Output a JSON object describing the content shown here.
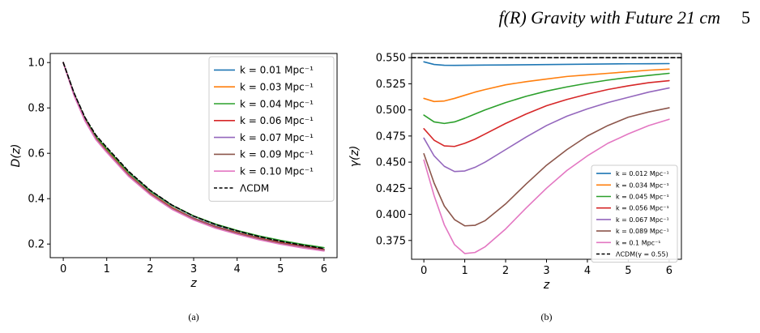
{
  "header": {
    "title": "f(R) Gravity with Future 21 cm",
    "page_number": "5"
  },
  "chart_data": [
    {
      "type": "line",
      "caption": "(a)",
      "xlabel": "z",
      "ylabel": "D(z)",
      "xlim": [
        -0.3,
        6.3
      ],
      "ylim": [
        0.14,
        1.04
      ],
      "xticks": [
        "0",
        "1",
        "2",
        "3",
        "4",
        "5",
        "6"
      ],
      "yticks": [
        "0.2",
        "0.4",
        "0.6",
        "0.8",
        "1.0"
      ],
      "legend_position": "top-right",
      "x": [
        0,
        0.25,
        0.5,
        0.75,
        1,
        1.5,
        2,
        2.5,
        3,
        3.5,
        4,
        4.5,
        5,
        5.5,
        6
      ],
      "series": [
        {
          "name": "k = 0.01 Mpc⁻¹",
          "color": "#1f77b4",
          "dash": "solid",
          "values": [
            1.0,
            0.86,
            0.75,
            0.67,
            0.615,
            0.51,
            0.428,
            0.363,
            0.315,
            0.279,
            0.252,
            0.228,
            0.208,
            0.192,
            0.177
          ]
        },
        {
          "name": "k = 0.03 Mpc⁻¹",
          "color": "#ff7f0e",
          "dash": "solid",
          "values": [
            1.0,
            0.858,
            0.748,
            0.668,
            0.612,
            0.507,
            0.425,
            0.361,
            0.313,
            0.277,
            0.25,
            0.226,
            0.206,
            0.19,
            0.175
          ]
        },
        {
          "name": "k = 0.04 Mpc⁻¹",
          "color": "#2ca02c",
          "dash": "solid",
          "values": [
            1.0,
            0.862,
            0.754,
            0.674,
            0.62,
            0.517,
            0.435,
            0.371,
            0.324,
            0.288,
            0.26,
            0.236,
            0.216,
            0.199,
            0.184
          ]
        },
        {
          "name": "k = 0.06 Mpc⁻¹",
          "color": "#d62728",
          "dash": "solid",
          "values": [
            1.0,
            0.857,
            0.747,
            0.666,
            0.61,
            0.505,
            0.423,
            0.359,
            0.312,
            0.276,
            0.249,
            0.225,
            0.205,
            0.189,
            0.175
          ]
        },
        {
          "name": "k = 0.07 Mpc⁻¹",
          "color": "#9467bd",
          "dash": "solid",
          "values": [
            1.0,
            0.856,
            0.745,
            0.664,
            0.608,
            0.503,
            0.421,
            0.357,
            0.31,
            0.274,
            0.247,
            0.223,
            0.203,
            0.187,
            0.173
          ]
        },
        {
          "name": "k = 0.09 Mpc⁻¹",
          "color": "#8c564b",
          "dash": "solid",
          "values": [
            1.0,
            0.855,
            0.744,
            0.663,
            0.607,
            0.502,
            0.42,
            0.356,
            0.309,
            0.273,
            0.246,
            0.222,
            0.202,
            0.186,
            0.172
          ]
        },
        {
          "name": "k = 0.10 Mpc⁻¹",
          "color": "#e377c2",
          "dash": "solid",
          "values": [
            1.0,
            0.853,
            0.742,
            0.66,
            0.604,
            0.499,
            0.417,
            0.353,
            0.306,
            0.27,
            0.243,
            0.219,
            0.199,
            0.183,
            0.169
          ]
        },
        {
          "name": "ΛCDM",
          "color": "#000000",
          "dash": "dashed",
          "values": [
            1.0,
            0.865,
            0.758,
            0.68,
            0.626,
            0.521,
            0.437,
            0.372,
            0.323,
            0.286,
            0.258,
            0.233,
            0.212,
            0.195,
            0.18
          ]
        }
      ]
    },
    {
      "type": "line",
      "caption": "(b)",
      "xlabel": "z",
      "ylabel": "γ(z)",
      "xlim": [
        -0.3,
        6.3
      ],
      "ylim": [
        0.357,
        0.554
      ],
      "xticks": [
        "0",
        "1",
        "2",
        "3",
        "4",
        "5",
        "6"
      ],
      "yticks": [
        "0.375",
        "0.400",
        "0.425",
        "0.450",
        "0.475",
        "0.500",
        "0.525",
        "0.550"
      ],
      "legend_position": "bottom-right",
      "x": [
        0,
        0.25,
        0.5,
        0.75,
        1,
        1.25,
        1.5,
        2,
        2.5,
        3,
        3.5,
        4,
        4.5,
        5,
        5.5,
        6
      ],
      "series": [
        {
          "name": "k = 0.012 Mpc⁻¹",
          "color": "#1f77b4",
          "dash": "solid",
          "values": [
            0.546,
            0.5435,
            0.5427,
            0.5426,
            0.5427,
            0.5428,
            0.5429,
            0.543,
            0.5432,
            0.5434,
            0.5436,
            0.5438,
            0.544,
            0.5441,
            0.5442,
            0.5443
          ]
        },
        {
          "name": "k = 0.034 Mpc⁻¹",
          "color": "#ff7f0e",
          "dash": "solid",
          "values": [
            0.511,
            0.508,
            0.5085,
            0.511,
            0.514,
            0.517,
            0.5195,
            0.524,
            0.527,
            0.5295,
            0.532,
            0.5335,
            0.535,
            0.5365,
            0.538,
            0.539
          ]
        },
        {
          "name": "k = 0.045 Mpc⁻¹",
          "color": "#2ca02c",
          "dash": "solid",
          "values": [
            0.495,
            0.4885,
            0.487,
            0.4885,
            0.492,
            0.496,
            0.5,
            0.507,
            0.513,
            0.518,
            0.522,
            0.5255,
            0.5285,
            0.531,
            0.533,
            0.535
          ]
        },
        {
          "name": "k = 0.056 Mpc⁻¹",
          "color": "#d62728",
          "dash": "solid",
          "values": [
            0.482,
            0.471,
            0.4655,
            0.465,
            0.468,
            0.472,
            0.477,
            0.487,
            0.496,
            0.504,
            0.51,
            0.515,
            0.5195,
            0.523,
            0.526,
            0.528
          ]
        },
        {
          "name": "k = 0.067 Mpc⁻¹",
          "color": "#9467bd",
          "dash": "solid",
          "values": [
            0.473,
            0.456,
            0.446,
            0.441,
            0.4415,
            0.445,
            0.45,
            0.462,
            0.474,
            0.485,
            0.494,
            0.501,
            0.507,
            0.512,
            0.517,
            0.521
          ]
        },
        {
          "name": "k = 0.089 Mpc⁻¹",
          "color": "#8c564b",
          "dash": "solid",
          "values": [
            0.458,
            0.43,
            0.408,
            0.395,
            0.389,
            0.3895,
            0.394,
            0.41,
            0.429,
            0.447,
            0.462,
            0.475,
            0.485,
            0.493,
            0.498,
            0.502
          ]
        },
        {
          "name": "k = 0.1 Mpc⁻¹",
          "color": "#e377c2",
          "dash": "solid",
          "values": [
            0.452,
            0.418,
            0.39,
            0.371,
            0.3625,
            0.3635,
            0.369,
            0.386,
            0.406,
            0.425,
            0.442,
            0.456,
            0.468,
            0.477,
            0.485,
            0.491
          ]
        },
        {
          "name": "ΛCDM(γ = 0.55)",
          "color": "#000000",
          "dash": "dashed",
          "values": [
            0.55,
            0.55,
            0.55,
            0.55,
            0.55,
            0.55,
            0.55,
            0.55,
            0.55,
            0.55,
            0.55,
            0.55,
            0.55,
            0.55,
            0.55,
            0.55
          ]
        }
      ]
    }
  ]
}
